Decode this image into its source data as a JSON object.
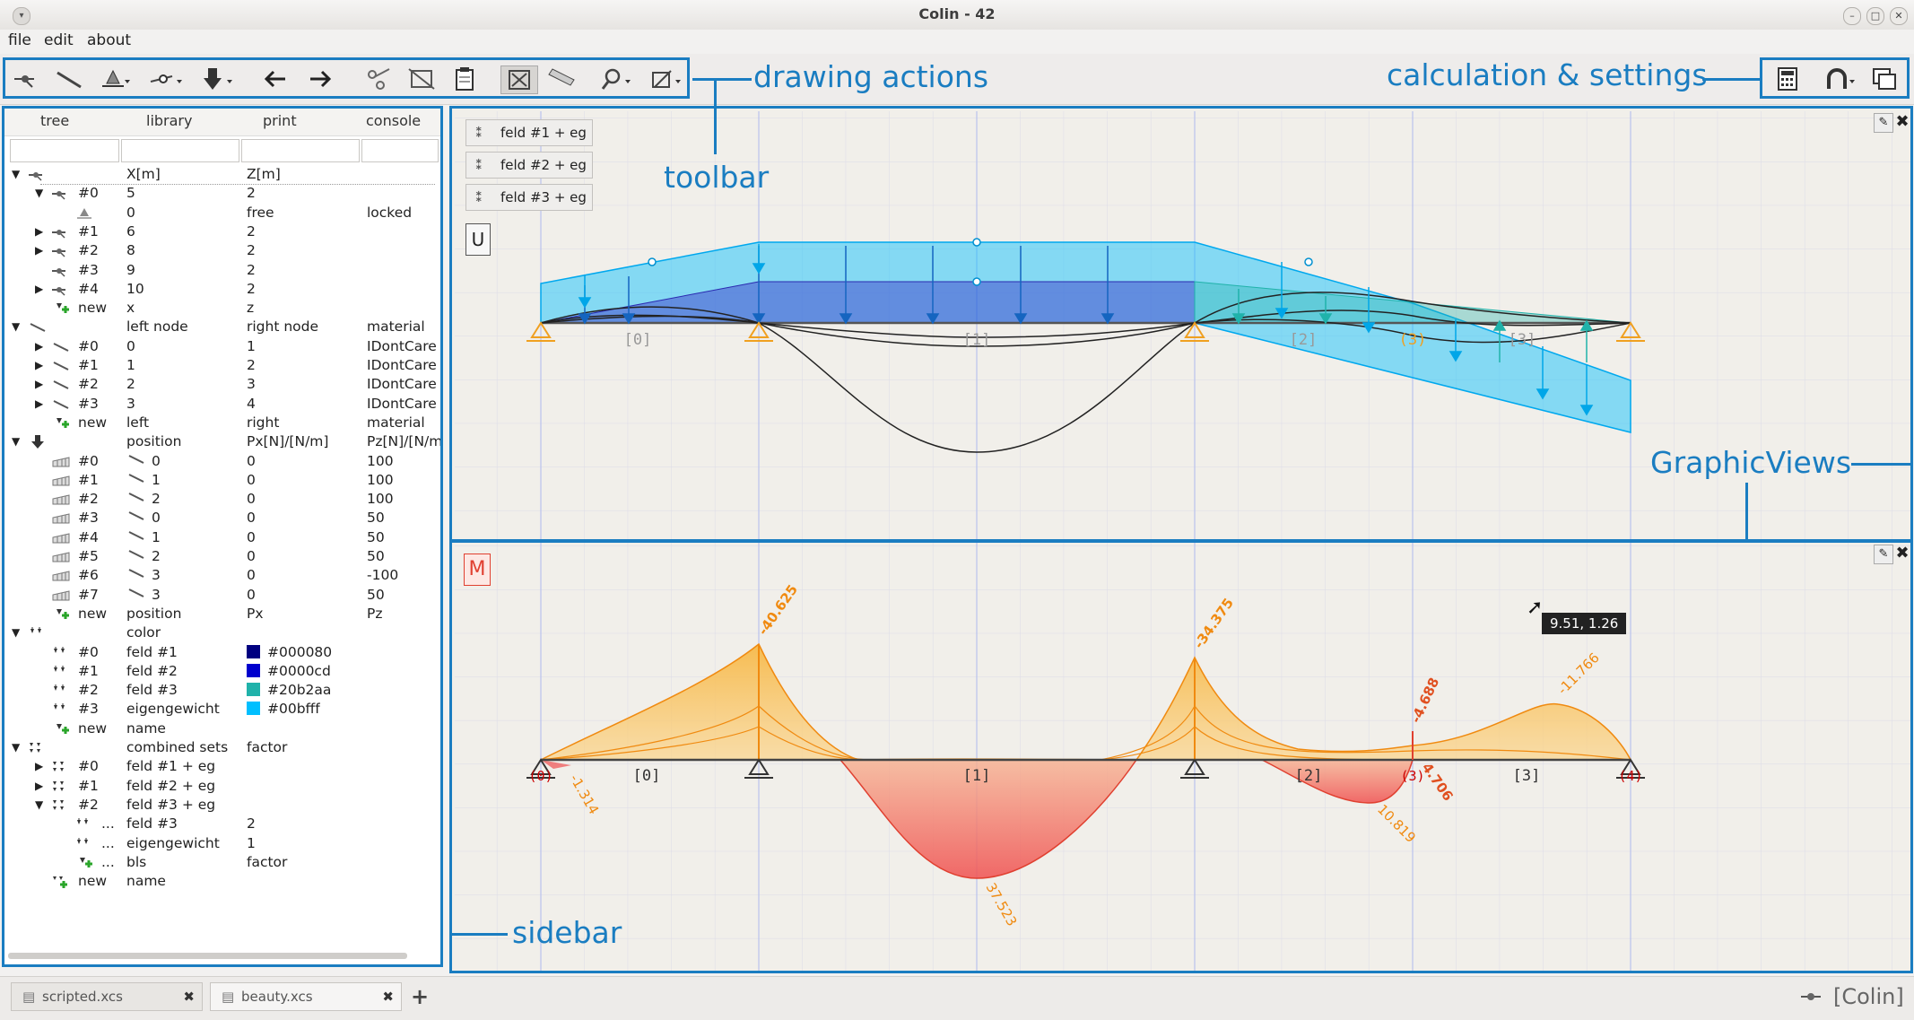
{
  "window": {
    "title": "Colin - 42"
  },
  "menu": {
    "file": "file",
    "edit": "edit",
    "about": "about"
  },
  "annotations": {
    "drawing_actions": "drawing actions",
    "toolbar": "toolbar",
    "calc_settings": "calculation & settings",
    "graphic_views": "GraphicViews",
    "sidebar": "sidebar"
  },
  "toolbar": {
    "drawing_icons": [
      "node-icon",
      "beam-icon",
      "support-icon",
      "hinge-icon",
      "load-icon",
      "arrow-left-icon",
      "arrow-right-icon",
      "scissors-icon",
      "cut-icon",
      "clipboard-icon",
      "fit-view-icon",
      "ruler-icon",
      "zoom-icon",
      "snap-icon"
    ],
    "settings_icons": [
      "calculator-icon",
      "magnet-icon",
      "windows-icon"
    ]
  },
  "sidebar": {
    "tabs": [
      "tree",
      "library",
      "print",
      "console"
    ],
    "rows": [
      {
        "exp": "▼",
        "ind": 0,
        "icon": "node",
        "c1": "",
        "c2": "X[m]",
        "c3": "Z[m]",
        "c4": ""
      },
      {
        "exp": "▼",
        "ind": 1,
        "icon": "node",
        "c1": "#0",
        "c2": "5",
        "c3": "2",
        "c4": ""
      },
      {
        "exp": "",
        "ind": 2,
        "icon": "support",
        "c1": "",
        "c2": "0",
        "c3": "free",
        "c4": "locked"
      },
      {
        "exp": "▶",
        "ind": 1,
        "icon": "node",
        "c1": "#1",
        "c2": "6",
        "c3": "2",
        "c4": ""
      },
      {
        "exp": "▶",
        "ind": 1,
        "icon": "node",
        "c1": "#2",
        "c2": "8",
        "c3": "2",
        "c4": ""
      },
      {
        "exp": "",
        "ind": 1,
        "icon": "node",
        "c1": "#3",
        "c2": "9",
        "c3": "2",
        "c4": ""
      },
      {
        "exp": "▶",
        "ind": 1,
        "icon": "node",
        "c1": "#4",
        "c2": "10",
        "c3": "2",
        "c4": ""
      },
      {
        "exp": "",
        "ind": 1,
        "icon": "new",
        "c1": "new",
        "c2": "x",
        "c3": "z",
        "c4": ""
      },
      {
        "exp": "▼",
        "ind": 0,
        "icon": "beam",
        "c1": "",
        "c2": "left node",
        "c3": "right node",
        "c4": "material"
      },
      {
        "exp": "▶",
        "ind": 1,
        "icon": "beam",
        "c1": "#0",
        "c2": "0",
        "c3": "1",
        "c4": "IDontCare"
      },
      {
        "exp": "▶",
        "ind": 1,
        "icon": "beam",
        "c1": "#1",
        "c2": "1",
        "c3": "2",
        "c4": "IDontCare"
      },
      {
        "exp": "▶",
        "ind": 1,
        "icon": "beam",
        "c1": "#2",
        "c2": "2",
        "c3": "3",
        "c4": "IDontCare"
      },
      {
        "exp": "▶",
        "ind": 1,
        "icon": "beam",
        "c1": "#3",
        "c2": "3",
        "c3": "4",
        "c4": "IDontCare"
      },
      {
        "exp": "",
        "ind": 1,
        "icon": "new",
        "c1": "new",
        "c2": "left",
        "c3": "right",
        "c4": "material"
      },
      {
        "exp": "▼",
        "ind": 0,
        "icon": "load",
        "c1": "",
        "c2": "position",
        "c3": "Px[N]/[N/m]",
        "c4": "Pz[N]/[N/m]"
      },
      {
        "exp": "",
        "ind": 1,
        "icon": "dload",
        "c1": "#0",
        "c2": "0",
        "c3": "0",
        "c4": "100",
        "b": true
      },
      {
        "exp": "",
        "ind": 1,
        "icon": "dload",
        "c1": "#1",
        "c2": "1",
        "c3": "0",
        "c4": "100",
        "b": true
      },
      {
        "exp": "",
        "ind": 1,
        "icon": "dload",
        "c1": "#2",
        "c2": "2",
        "c3": "0",
        "c4": "100",
        "b": true
      },
      {
        "exp": "",
        "ind": 1,
        "icon": "dload",
        "c1": "#3",
        "c2": "0",
        "c3": "0",
        "c4": "50",
        "b": true
      },
      {
        "exp": "",
        "ind": 1,
        "icon": "dload",
        "c1": "#4",
        "c2": "1",
        "c3": "0",
        "c4": "50",
        "b": true
      },
      {
        "exp": "",
        "ind": 1,
        "icon": "dload",
        "c1": "#5",
        "c2": "2",
        "c3": "0",
        "c4": "50",
        "b": true
      },
      {
        "exp": "",
        "ind": 1,
        "icon": "dload",
        "c1": "#6",
        "c2": "3",
        "c3": "0",
        "c4": "-100",
        "b": true
      },
      {
        "exp": "",
        "ind": 1,
        "icon": "dload",
        "c1": "#7",
        "c2": "3",
        "c3": "0",
        "c4": "50",
        "b": true
      },
      {
        "exp": "",
        "ind": 1,
        "icon": "new",
        "c1": "new",
        "c2": "position",
        "c3": "Px",
        "c4": "Pz"
      },
      {
        "exp": "▼",
        "ind": 0,
        "icon": "set",
        "c1": "",
        "c2": "color",
        "c3": "",
        "c4": ""
      },
      {
        "exp": "",
        "ind": 1,
        "icon": "set",
        "c1": "#0",
        "c2": "feld #1",
        "c3": "#000080",
        "c4": "",
        "sw": "#000080"
      },
      {
        "exp": "",
        "ind": 1,
        "icon": "set",
        "c1": "#1",
        "c2": "feld #2",
        "c3": "#0000cd",
        "c4": "",
        "sw": "#0000cd"
      },
      {
        "exp": "",
        "ind": 1,
        "icon": "set",
        "c1": "#2",
        "c2": "feld #3",
        "c3": "#20b2aa",
        "c4": "",
        "sw": "#20b2aa"
      },
      {
        "exp": "",
        "ind": 1,
        "icon": "set",
        "c1": "#3",
        "c2": "eigengewicht",
        "c3": "#00bfff",
        "c4": "",
        "sw": "#00bfff"
      },
      {
        "exp": "",
        "ind": 1,
        "icon": "new",
        "c1": "new",
        "c2": "name",
        "c3": "",
        "c4": ""
      },
      {
        "exp": "▼",
        "ind": 0,
        "icon": "comb",
        "c1": "",
        "c2": "combined sets",
        "c3": "factor",
        "c4": ""
      },
      {
        "exp": "▶",
        "ind": 1,
        "icon": "comb",
        "c1": "#0",
        "c2": "feld #1 + eg",
        "c3": "",
        "c4": ""
      },
      {
        "exp": "▶",
        "ind": 1,
        "icon": "comb",
        "c1": "#1",
        "c2": "feld #2 + eg",
        "c3": "",
        "c4": ""
      },
      {
        "exp": "▼",
        "ind": 1,
        "icon": "comb",
        "c1": "#2",
        "c2": "feld #3 + eg",
        "c3": "",
        "c4": ""
      },
      {
        "exp": "",
        "ind": 2,
        "icon": "set",
        "c1": "...",
        "c2": "feld #3",
        "c3": "2",
        "c4": ""
      },
      {
        "exp": "",
        "ind": 2,
        "icon": "set",
        "c1": "...",
        "c2": "eigengewicht",
        "c3": "1",
        "c4": ""
      },
      {
        "exp": "",
        "ind": 2,
        "icon": "new",
        "c1": "...",
        "c2": "bls",
        "c3": "factor",
        "c4": ""
      },
      {
        "exp": "",
        "ind": 1,
        "icon": "newcomb",
        "c1": "new",
        "c2": "name",
        "c3": "",
        "c4": ""
      }
    ]
  },
  "view_top": {
    "load_sets": [
      "feld #1 + eg",
      "feld #2 + eg",
      "feld #3 + eg"
    ],
    "result_button": "U",
    "beam_labels": [
      "[0]",
      "[1]",
      "[2]",
      "[3]"
    ],
    "node_labels": [
      "(3)"
    ]
  },
  "view_bottom": {
    "result_button": "M",
    "beam_labels": [
      "[0]",
      "[1]",
      "[2]",
      "[3]"
    ],
    "node_labels": [
      "(0)",
      "(3)",
      "(4)"
    ],
    "values": [
      "-40.625",
      "-34.375",
      "-4.688",
      "-11.766",
      "-1.314",
      "37.523",
      "10.819",
      "4.706"
    ],
    "tooltip": "9.51, 1.26"
  },
  "file_tabs": [
    "scripted.xcs",
    "beauty.xcs"
  ],
  "status": "[Colin]",
  "colors": {
    "accent": "#1a7dc1",
    "moment": "#f07a1a",
    "load_blue": "#00bfff",
    "purple": "#6b6ad8"
  }
}
